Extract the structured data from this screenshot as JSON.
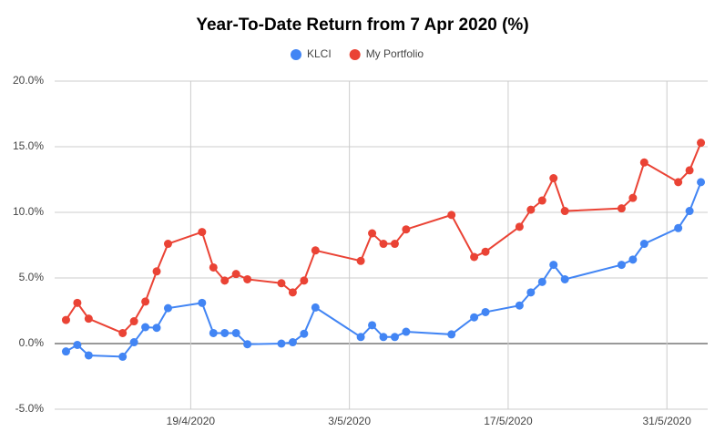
{
  "chart_data": {
    "type": "line",
    "title": "Year-To-Date Return from 7 Apr 2020 (%)",
    "x": [
      "8/4/2020",
      "9/4/2020",
      "10/4/2020",
      "13/4/2020",
      "14/4/2020",
      "15/4/2020",
      "16/4/2020",
      "17/4/2020",
      "20/4/2020",
      "21/4/2020",
      "22/4/2020",
      "23/4/2020",
      "24/4/2020",
      "27/4/2020",
      "28/4/2020",
      "29/4/2020",
      "30/4/2020",
      "4/5/2020",
      "5/5/2020",
      "6/5/2020",
      "7/5/2020",
      "8/5/2020",
      "12/5/2020",
      "14/5/2020",
      "15/5/2020",
      "18/5/2020",
      "19/5/2020",
      "20/5/2020",
      "21/5/2020",
      "22/5/2020",
      "27/5/2020",
      "28/5/2020",
      "29/5/2020",
      "1/6/2020",
      "2/6/2020",
      "3/6/2020"
    ],
    "series": [
      {
        "name": "KLCI",
        "color": "#4285f4",
        "values": [
          -0.6,
          -0.1,
          -0.9,
          -1.0,
          0.1,
          1.25,
          1.2,
          2.7,
          3.1,
          0.8,
          0.8,
          0.8,
          -0.05,
          0.0,
          0.1,
          0.75,
          2.75,
          0.5,
          1.4,
          0.5,
          0.5,
          0.9,
          0.7,
          2.0,
          2.4,
          2.9,
          3.9,
          4.7,
          6.0,
          4.9,
          6.0,
          6.4,
          7.6,
          8.8,
          10.1,
          12.3
        ]
      },
      {
        "name": "My Portfolio",
        "color": "#ea4335",
        "values": [
          1.8,
          3.1,
          1.9,
          0.8,
          1.7,
          3.2,
          5.5,
          7.6,
          8.5,
          5.8,
          4.8,
          5.3,
          4.9,
          4.6,
          3.9,
          4.8,
          7.1,
          6.3,
          8.4,
          7.6,
          7.6,
          8.7,
          9.8,
          6.6,
          7.0,
          8.9,
          10.2,
          10.9,
          12.6,
          10.1,
          10.3,
          11.1,
          13.8,
          12.3,
          13.2,
          15.3
        ]
      }
    ],
    "xlim": [
      "7/4/2020",
      "4/6/2020"
    ],
    "xticks": [
      "19/4/2020",
      "3/5/2020",
      "17/5/2020",
      "31/5/2020"
    ],
    "ylim": [
      -5,
      20
    ],
    "yticks": [
      {
        "value": -5,
        "label": "-5.0%"
      },
      {
        "value": 0,
        "label": "0.0%"
      },
      {
        "value": 5,
        "label": "5.0%"
      },
      {
        "value": 10,
        "label": "10.0%"
      },
      {
        "value": 15,
        "label": "15.0%"
      },
      {
        "value": 20,
        "label": "20.0%"
      }
    ],
    "grid": true
  }
}
